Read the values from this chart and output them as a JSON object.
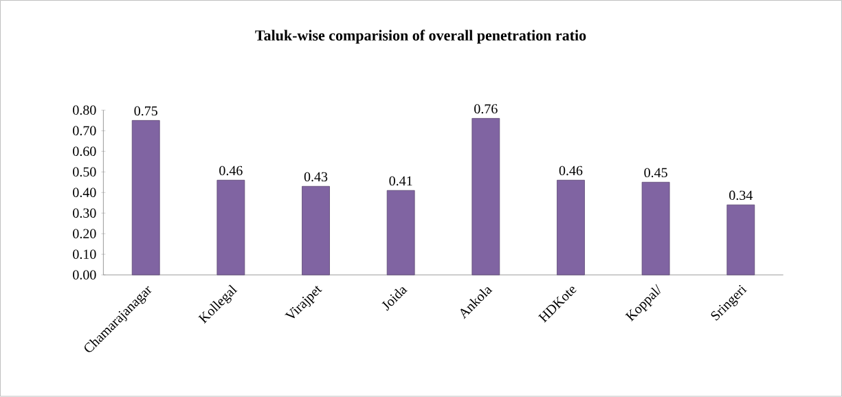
{
  "chart_data": {
    "type": "bar",
    "title": "Taluk-wise comparision of overall penetration ratio",
    "categories": [
      "Chamarajanagar",
      "Kollegal",
      "Virajpet",
      "Joida",
      "Ankola",
      "HDKote",
      "Koppal/",
      "Sringeri"
    ],
    "values": [
      0.75,
      0.46,
      0.43,
      0.41,
      0.76,
      0.46,
      0.45,
      0.34
    ],
    "color": "#8064a2",
    "ylim": [
      0,
      0.8
    ],
    "yticks": [
      {
        "value": 0,
        "label": "0.00"
      },
      {
        "value": 0.1,
        "label": "0.10"
      },
      {
        "value": 0.2,
        "label": "0.20"
      },
      {
        "value": 0.3,
        "label": "0.30"
      },
      {
        "value": 0.4,
        "label": "0.40"
      },
      {
        "value": 0.5,
        "label": "0.50"
      },
      {
        "value": 0.6,
        "label": "0.60"
      },
      {
        "value": 0.7,
        "label": "0.70"
      },
      {
        "value": 0.8,
        "label": "0.80"
      }
    ],
    "data_labels": true,
    "grid": false
  }
}
